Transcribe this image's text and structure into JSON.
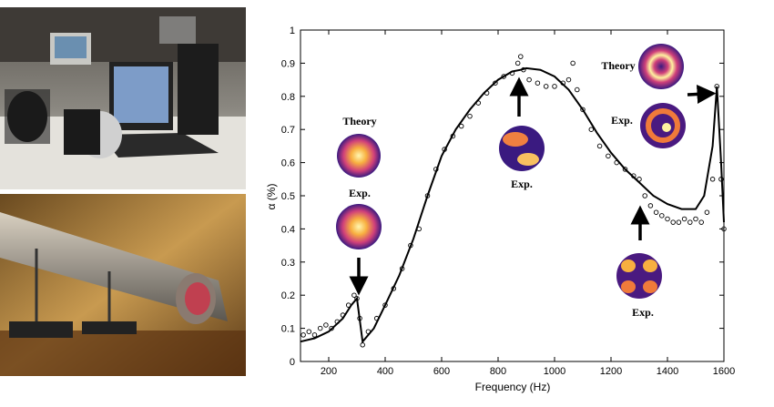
{
  "chart_data": {
    "type": "line",
    "xlabel": "Frequency (Hz)",
    "ylabel": "α (%)",
    "xlim": [
      100,
      1600
    ],
    "ylim": [
      0,
      1
    ],
    "xticks": [
      200,
      400,
      600,
      800,
      1000,
      1200,
      1400,
      1600
    ],
    "yticks": [
      0,
      0.1,
      0.2,
      0.3,
      0.4,
      0.5,
      0.6,
      0.7,
      0.8,
      0.9,
      1
    ],
    "grid": false,
    "series": [
      {
        "style": "solid-line",
        "x": [
          100,
          150,
          200,
          250,
          280,
          300,
          320,
          360,
          400,
          450,
          500,
          550,
          600,
          650,
          700,
          750,
          800,
          850,
          880,
          900,
          950,
          1000,
          1050,
          1100,
          1150,
          1200,
          1250,
          1300,
          1350,
          1400,
          1450,
          1500,
          1530,
          1560,
          1575,
          1590,
          1600
        ],
        "y": [
          0.06,
          0.07,
          0.09,
          0.13,
          0.17,
          0.19,
          0.06,
          0.1,
          0.17,
          0.26,
          0.37,
          0.5,
          0.62,
          0.7,
          0.76,
          0.81,
          0.85,
          0.875,
          0.88,
          0.885,
          0.88,
          0.86,
          0.82,
          0.76,
          0.69,
          0.63,
          0.58,
          0.54,
          0.5,
          0.475,
          0.46,
          0.46,
          0.5,
          0.65,
          0.83,
          0.6,
          0.42
        ]
      },
      {
        "style": "open-circles",
        "x": [
          110,
          130,
          150,
          170,
          190,
          210,
          230,
          250,
          270,
          290,
          300,
          310,
          320,
          340,
          370,
          400,
          430,
          460,
          490,
          520,
          550,
          580,
          610,
          640,
          670,
          700,
          730,
          760,
          790,
          820,
          850,
          870,
          880,
          890,
          910,
          940,
          970,
          1000,
          1030,
          1050,
          1065,
          1080,
          1100,
          1130,
          1160,
          1190,
          1220,
          1250,
          1280,
          1300,
          1320,
          1340,
          1360,
          1380,
          1400,
          1420,
          1440,
          1460,
          1480,
          1500,
          1520,
          1540,
          1560,
          1575,
          1590,
          1600
        ],
        "y": [
          0.08,
          0.09,
          0.08,
          0.1,
          0.11,
          0.1,
          0.12,
          0.14,
          0.17,
          0.2,
          0.19,
          0.13,
          0.05,
          0.09,
          0.13,
          0.17,
          0.22,
          0.28,
          0.35,
          0.4,
          0.5,
          0.58,
          0.64,
          0.68,
          0.71,
          0.74,
          0.78,
          0.81,
          0.84,
          0.86,
          0.87,
          0.9,
          0.92,
          0.88,
          0.85,
          0.84,
          0.83,
          0.83,
          0.84,
          0.85,
          0.9,
          0.82,
          0.76,
          0.7,
          0.65,
          0.62,
          0.6,
          0.58,
          0.56,
          0.55,
          0.5,
          0.47,
          0.45,
          0.44,
          0.43,
          0.42,
          0.42,
          0.43,
          0.42,
          0.43,
          0.42,
          0.45,
          0.55,
          0.83,
          0.55,
          0.4
        ]
      }
    ],
    "annotations": {
      "theory_left": "Theory",
      "exp_left": "Exp.",
      "exp_peak": "Exp.",
      "theory_right": "Theory",
      "exp_right": "Exp.",
      "exp_bottom": "Exp."
    }
  },
  "colors": {
    "axis": "#000000",
    "curve": "#000000",
    "mode_hot": "#fff2a0",
    "mode_mid": "#f07a3a",
    "mode_cold": "#3a1a80"
  }
}
